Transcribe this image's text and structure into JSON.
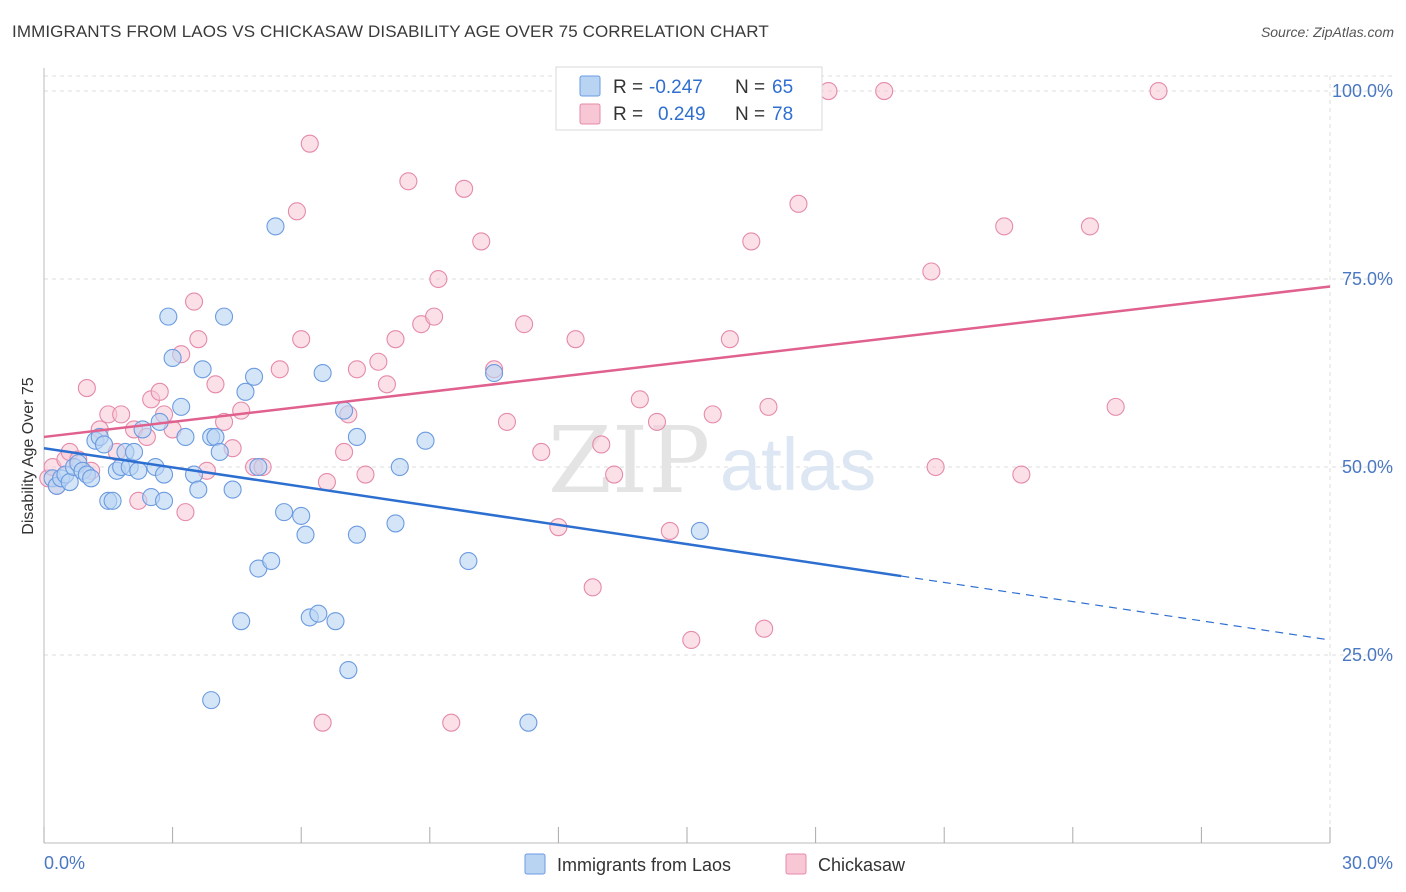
{
  "header": {
    "title": "IMMIGRANTS FROM LAOS VS CHICKASAW DISABILITY AGE OVER 75 CORRELATION CHART",
    "source": "Source: ZipAtlas.com"
  },
  "watermark": {
    "zip": "ZIP",
    "atlas": "atlas"
  },
  "colors": {
    "blue_fill": "#b9d3f3",
    "blue_stroke": "#6b9be0",
    "blue_line": "#2d6fd0",
    "pink_fill": "#f7c7d6",
    "pink_stroke": "#e58aaa",
    "pink_line": "#e0608e",
    "grid": "#dddddd",
    "axis_text": "#4a78c2"
  },
  "legend": {
    "rows": [
      {
        "r_label": "R =",
        "r_value": "-0.247",
        "n_label": "N =",
        "n_value": "65"
      },
      {
        "r_label": "R =",
        "r_value": "0.249",
        "n_label": "N =",
        "n_value": "78"
      }
    ],
    "bottom": [
      "Immigrants from Laos",
      "Chickasaw"
    ]
  },
  "chart_data": {
    "type": "scatter",
    "title": "IMMIGRANTS FROM LAOS VS CHICKASAW DISABILITY AGE OVER 75 CORRELATION CHART",
    "xlabel": "",
    "ylabel": "Disability Age Over 75",
    "xlim": [
      0,
      30
    ],
    "ylim": [
      0,
      102
    ],
    "x_tick_labels": [
      "0.0%",
      "30.0%"
    ],
    "y_ticks": [
      25,
      50,
      75,
      100
    ],
    "y_tick_labels": [
      "25.0%",
      "50.0%",
      "75.0%",
      "100.0%"
    ],
    "grid": true,
    "legend_position": "top-center",
    "series": [
      {
        "name": "Immigrants from Laos",
        "color": "blue",
        "trend": {
          "x0": 0,
          "y0": 52.5,
          "x1": 20,
          "y1": 35.5,
          "dash_to_x": 30,
          "dash_to_y": 27
        },
        "points": [
          [
            0.2,
            48.5
          ],
          [
            0.3,
            47.5
          ],
          [
            0.4,
            48.5
          ],
          [
            0.5,
            49
          ],
          [
            0.6,
            48
          ],
          [
            0.7,
            50
          ],
          [
            0.8,
            50.5
          ],
          [
            0.9,
            49.5
          ],
          [
            1.0,
            49
          ],
          [
            1.1,
            48.5
          ],
          [
            1.2,
            53.5
          ],
          [
            1.3,
            54
          ],
          [
            1.4,
            53
          ],
          [
            1.5,
            45.5
          ],
          [
            1.6,
            45.5
          ],
          [
            1.7,
            49.5
          ],
          [
            1.8,
            50
          ],
          [
            1.9,
            52
          ],
          [
            2.0,
            50
          ],
          [
            2.1,
            52
          ],
          [
            2.2,
            49.5
          ],
          [
            2.3,
            55
          ],
          [
            2.5,
            46
          ],
          [
            2.6,
            50
          ],
          [
            2.7,
            56
          ],
          [
            2.8,
            45.5
          ],
          [
            2.8,
            49
          ],
          [
            2.9,
            70
          ],
          [
            3.0,
            64.5
          ],
          [
            3.2,
            58
          ],
          [
            3.3,
            54
          ],
          [
            3.5,
            49
          ],
          [
            3.6,
            47
          ],
          [
            3.7,
            63
          ],
          [
            3.9,
            54
          ],
          [
            4.0,
            54
          ],
          [
            4.1,
            52
          ],
          [
            4.2,
            70
          ],
          [
            4.4,
            47
          ],
          [
            4.7,
            60
          ],
          [
            4.9,
            62
          ],
          [
            5.0,
            36.5
          ],
          [
            5.3,
            37.5
          ],
          [
            5.4,
            82
          ],
          [
            5.0,
            50
          ],
          [
            5.6,
            44
          ],
          [
            6.0,
            43.5
          ],
          [
            6.1,
            41
          ],
          [
            6.2,
            30
          ],
          [
            6.5,
            62.5
          ],
          [
            6.8,
            29.5
          ],
          [
            7.1,
            23
          ],
          [
            7.3,
            41
          ],
          [
            7.3,
            54
          ],
          [
            7.0,
            57.5
          ],
          [
            8.2,
            42.5
          ],
          [
            8.3,
            50
          ],
          [
            8.9,
            53.5
          ],
          [
            9.9,
            37.5
          ],
          [
            10.5,
            62.5
          ],
          [
            11.3,
            16
          ],
          [
            15.3,
            41.5
          ],
          [
            4.6,
            29.5
          ],
          [
            3.9,
            19
          ],
          [
            6.4,
            30.5
          ]
        ]
      },
      {
        "name": "Chickasaw",
        "color": "pink",
        "trend": {
          "x0": 0,
          "y0": 54,
          "x1": 30,
          "y1": 74
        },
        "points": [
          [
            0.1,
            48.5
          ],
          [
            0.2,
            50
          ],
          [
            0.3,
            47.5
          ],
          [
            0.5,
            51
          ],
          [
            0.6,
            52
          ],
          [
            0.8,
            51
          ],
          [
            1.0,
            60.5
          ],
          [
            1.1,
            49.5
          ],
          [
            1.3,
            55
          ],
          [
            1.5,
            57
          ],
          [
            1.7,
            52
          ],
          [
            1.8,
            57
          ],
          [
            2.1,
            55
          ],
          [
            2.2,
            45.5
          ],
          [
            2.4,
            54
          ],
          [
            2.5,
            59
          ],
          [
            2.7,
            60
          ],
          [
            2.8,
            57
          ],
          [
            3.0,
            55
          ],
          [
            3.2,
            65
          ],
          [
            3.3,
            44
          ],
          [
            3.5,
            72
          ],
          [
            3.6,
            67
          ],
          [
            3.8,
            49.5
          ],
          [
            4.0,
            61
          ],
          [
            4.2,
            56
          ],
          [
            4.4,
            52.5
          ],
          [
            4.6,
            57.5
          ],
          [
            4.9,
            50
          ],
          [
            5.1,
            50
          ],
          [
            5.5,
            63
          ],
          [
            5.9,
            84
          ],
          [
            6.0,
            67
          ],
          [
            6.2,
            93
          ],
          [
            6.5,
            16
          ],
          [
            6.6,
            48
          ],
          [
            7.0,
            52
          ],
          [
            7.1,
            57
          ],
          [
            7.3,
            63
          ],
          [
            7.5,
            49
          ],
          [
            7.8,
            64
          ],
          [
            8.0,
            61
          ],
          [
            8.2,
            67
          ],
          [
            8.5,
            88
          ],
          [
            8.8,
            69
          ],
          [
            9.1,
            70
          ],
          [
            9.2,
            75
          ],
          [
            9.5,
            16
          ],
          [
            9.8,
            87
          ],
          [
            10.2,
            80
          ],
          [
            10.5,
            63
          ],
          [
            10.8,
            56
          ],
          [
            11.2,
            69
          ],
          [
            11.6,
            52
          ],
          [
            12.0,
            42
          ],
          [
            12.4,
            67
          ],
          [
            12.8,
            34
          ],
          [
            13.0,
            53
          ],
          [
            13.3,
            49
          ],
          [
            13.9,
            59
          ],
          [
            14.3,
            56
          ],
          [
            14.6,
            41.5
          ],
          [
            15.1,
            27
          ],
          [
            15.6,
            57
          ],
          [
            16.0,
            67
          ],
          [
            16.5,
            80
          ],
          [
            16.8,
            28.5
          ],
          [
            16.9,
            58
          ],
          [
            17.6,
            85
          ],
          [
            18.3,
            100
          ],
          [
            19.6,
            100
          ],
          [
            20.7,
            76
          ],
          [
            20.8,
            50
          ],
          [
            22.4,
            82
          ],
          [
            22.8,
            49
          ],
          [
            24.4,
            82
          ],
          [
            25.0,
            58
          ],
          [
            26.0,
            100
          ]
        ]
      }
    ]
  }
}
